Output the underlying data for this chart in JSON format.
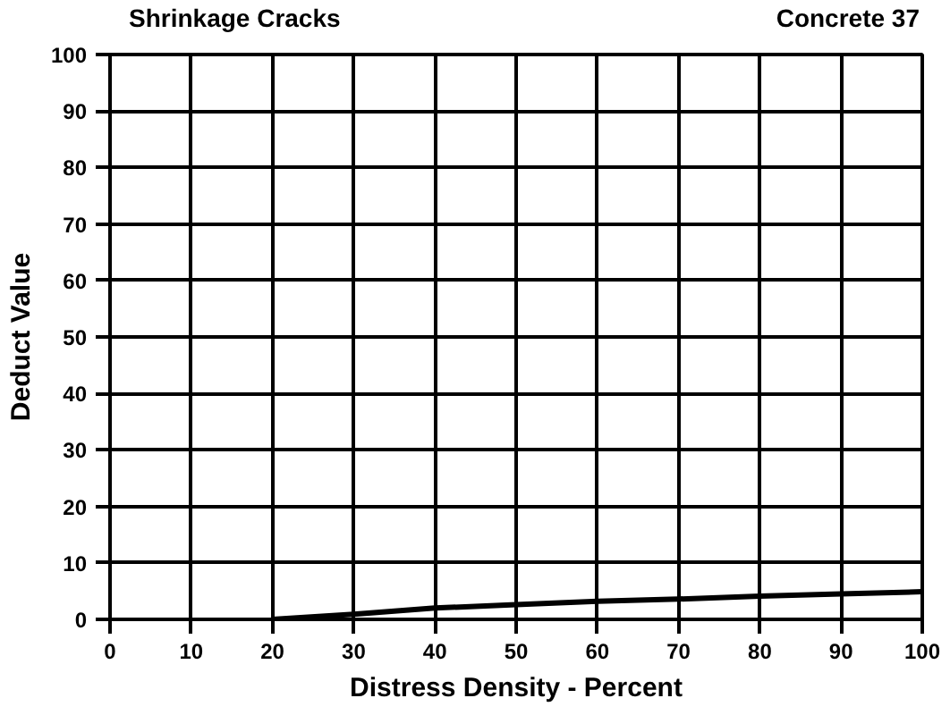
{
  "chart_data": {
    "type": "line",
    "title": "Shrinkage Cracks",
    "subtitle": "Concrete 37",
    "xlabel": "Distress Density - Percent",
    "ylabel": "Deduct Value",
    "x": [
      20,
      30,
      40,
      50,
      60,
      70,
      80,
      90,
      100
    ],
    "series": [
      {
        "color": "#000000",
        "values": [
          0,
          0.9,
          2.0,
          2.6,
          3.2,
          3.6,
          4.1,
          4.5,
          4.9
        ]
      }
    ],
    "xlim": [
      0,
      100
    ],
    "ylim": [
      0,
      100
    ],
    "xticks": [
      0,
      10,
      20,
      30,
      40,
      50,
      60,
      70,
      80,
      90,
      100
    ],
    "yticks": [
      0,
      10,
      20,
      30,
      40,
      50,
      60,
      70,
      80,
      90,
      100
    ],
    "grid": true,
    "marker": "none",
    "line_style": "solid"
  }
}
